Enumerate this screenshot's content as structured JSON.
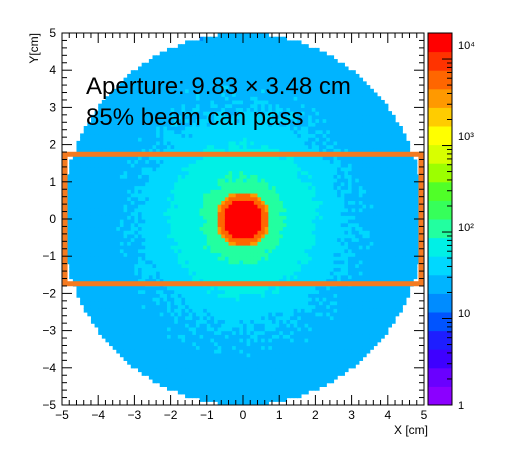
{
  "chart_data": {
    "type": "heatmap",
    "title": "",
    "xlabel": "X [cm]",
    "ylabel": "Y[cm]",
    "xlim": [
      -5,
      5
    ],
    "ylim": [
      -5,
      5
    ],
    "x_ticks": [
      -5,
      -4,
      -3,
      -2,
      -1,
      0,
      1,
      2,
      3,
      4,
      5
    ],
    "y_ticks": [
      -5,
      -4,
      -3,
      -2,
      -1,
      0,
      1,
      2,
      3,
      4,
      5
    ],
    "x_tick_labels": [
      "−5",
      "−4",
      "−3",
      "−2",
      "−1",
      "0",
      "1",
      "2",
      "3",
      "4",
      "5"
    ],
    "y_tick_labels": [
      "−5",
      "−4",
      "−3",
      "−2",
      "−1",
      "0",
      "1",
      "2",
      "3",
      "4",
      "5"
    ],
    "beam_disk_radius_cm": 5.0,
    "beam_core_radius_cm": 0.55,
    "colorbar": {
      "scale": "log",
      "range": [
        1,
        20000
      ],
      "tick_values": [
        1,
        10,
        100,
        1000,
        10000
      ],
      "labels": [
        "1",
        "10",
        "10²",
        "10³",
        "10⁴"
      ],
      "colors": [
        "#8b00ff",
        "#6a00ff",
        "#3e00ff",
        "#1e1eff",
        "#0054ff",
        "#008cff",
        "#00b4ff",
        "#00d8ff",
        "#00f0e6",
        "#22ffa0",
        "#36ff5a",
        "#50ff28",
        "#9cff00",
        "#d8ff00",
        "#ffff00",
        "#ffcc00",
        "#ff9900",
        "#ff6600",
        "#ff3300",
        "#ff0000"
      ]
    },
    "aperture_box": {
      "x_range": [
        -4.915,
        4.915
      ],
      "y_range": [
        -1.74,
        1.74
      ],
      "color": "#f47a20"
    },
    "annotations": [
      "Aperture: 9.83 × 3.48 cm",
      "85% beam can pass"
    ]
  }
}
